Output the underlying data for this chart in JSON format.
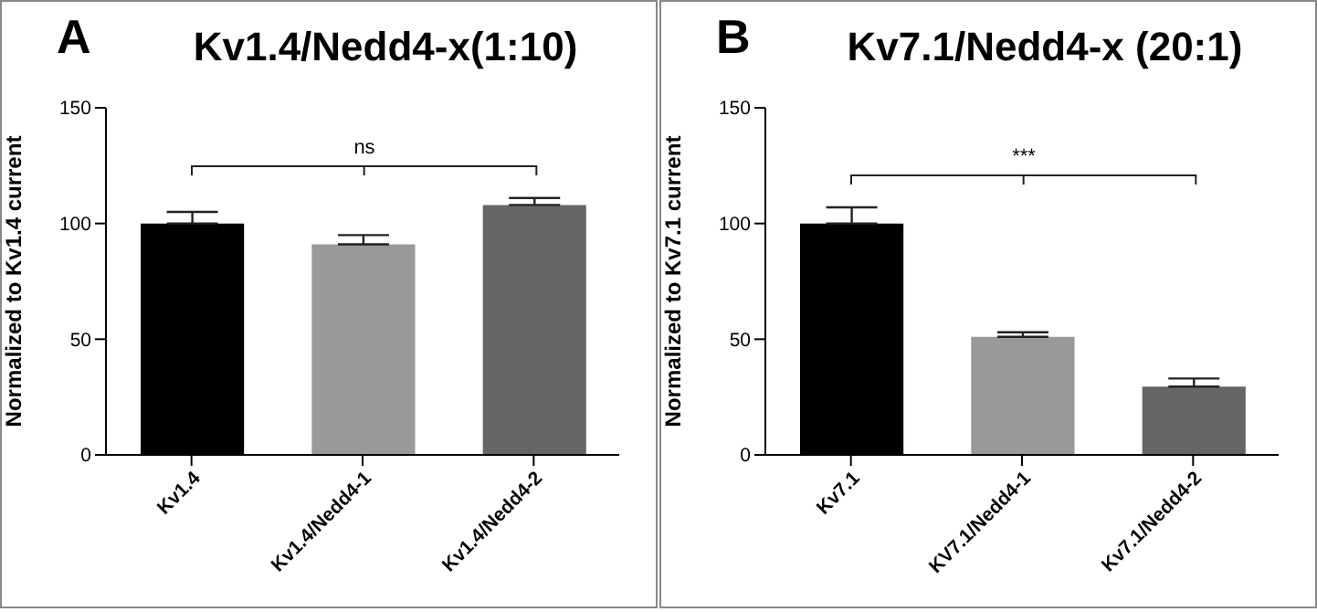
{
  "chart_data": [
    {
      "type": "bar",
      "title": "Kv1.4/Nedd4-x(1:10)",
      "ylabel": "Normalized to Kv1.4 current",
      "categories": [
        "Kv1.4",
        "Kv1.4/Nedd4-1",
        "Kv1.4/Nedd4-2"
      ],
      "values": [
        100,
        91,
        108
      ],
      "colors": [
        "#000000",
        "#999999",
        "#666666"
      ],
      "errors": [
        [
          100,
          105
        ],
        [
          91,
          95
        ],
        [
          108,
          111
        ]
      ],
      "ylim": [
        0,
        150
      ],
      "yticks": [
        0,
        50,
        100,
        150
      ],
      "annotations": [
        "A",
        "ns"
      ]
    },
    {
      "type": "bar",
      "title": "Kv7.1/Nedd4-x (20:1)",
      "ylabel": "Normalized to Kv7.1 current",
      "categories": [
        "Kv7.1",
        "KV7.1/Nedd4-1",
        "Kv7.1/Nedd4-2"
      ],
      "values": [
        100,
        51,
        29.5
      ],
      "colors": [
        "#000000",
        "#999999",
        "#666666"
      ],
      "errors": [
        [
          100,
          107
        ],
        [
          51,
          53
        ],
        [
          29.5,
          33
        ]
      ],
      "ylim": [
        0,
        150
      ],
      "yticks": [
        0,
        50,
        100,
        150
      ],
      "annotations": [
        "B",
        "***"
      ]
    }
  ]
}
